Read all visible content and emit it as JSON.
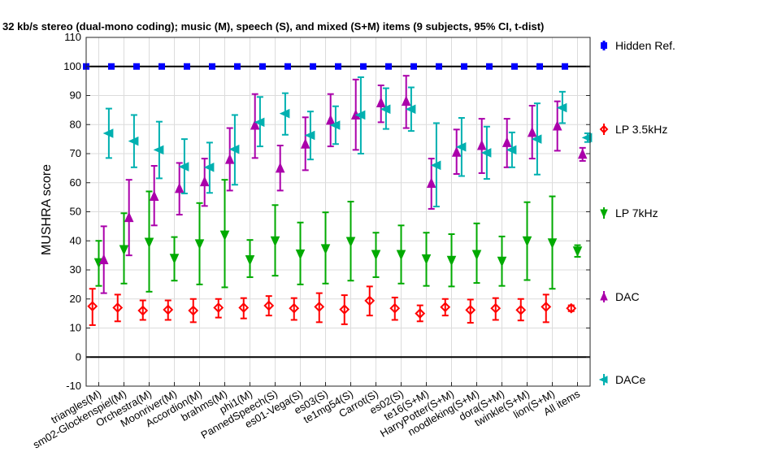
{
  "chart_data": {
    "type": "errorbar",
    "title": "32 kb/s stereo (dual-mono coding); music (M), speech (S), and mixed (S+M) items (9 subjects, 95% CI, t-dist)",
    "ylabel": "MUSHRA score",
    "xlabel": "",
    "ylim": [
      -10,
      110
    ],
    "yticks": [
      -10,
      0,
      10,
      20,
      30,
      40,
      50,
      60,
      70,
      80,
      90,
      100,
      110
    ],
    "grid": true,
    "categories": [
      "triangles(M)",
      "sm02-Glockenspiel(M)",
      "Orchestra(M)",
      "Moonriver(M)",
      "Accordion(M)",
      "brahms(M)",
      "phi1(M)",
      "PannedSpeech(S)",
      "es01-Vega(S)",
      "es03(S)",
      "te1mg54(S)",
      "Carrot(S)",
      "es02(S)",
      "te16(S+M)",
      "HarryPotter(S+M)",
      "noodleking(S+M)",
      "dora(S+M)",
      "twinkle(S+M)",
      "lion(S+M)",
      "All items"
    ],
    "series": [
      {
        "name": "Hidden Ref.",
        "color": "#0000ff",
        "marker": "square",
        "mean": [
          100,
          100,
          100,
          100,
          100,
          100,
          100,
          100,
          100,
          100,
          100,
          100,
          100,
          100,
          100,
          100,
          100,
          100,
          100,
          100
        ],
        "low": [
          100,
          100,
          100,
          100,
          100,
          100,
          100,
          100,
          100,
          100,
          100,
          100,
          100,
          100,
          100,
          100,
          100,
          100,
          100,
          100
        ],
        "high": [
          100,
          100,
          100,
          100,
          100,
          100,
          100,
          100,
          100,
          100,
          100,
          100,
          100,
          100,
          100,
          100,
          100,
          100,
          100,
          100
        ]
      },
      {
        "name": "LP 3.5kHz",
        "color": "#ff0000",
        "marker": "diamond",
        "mean": [
          17.5,
          17,
          16,
          16.3,
          16,
          17,
          17,
          17.7,
          16.8,
          17.3,
          16.4,
          19.4,
          16.8,
          15,
          17.2,
          16.2,
          16.8,
          16.2,
          17.3,
          16.8
        ],
        "low": [
          11,
          12.3,
          12.8,
          12.8,
          12,
          13.6,
          13.3,
          14.3,
          12.8,
          12,
          11.3,
          14.3,
          12.8,
          12.3,
          14.3,
          11.8,
          12.8,
          12.6,
          12,
          15.8
        ],
        "high": [
          23.5,
          21.5,
          19.5,
          19.5,
          20,
          20,
          20.3,
          21,
          20.3,
          22,
          21.3,
          24.3,
          20.5,
          17.8,
          20,
          19.8,
          20.3,
          20,
          21.5,
          17.8
        ]
      },
      {
        "name": "LP 7kHz",
        "color": "#00aa00",
        "marker": "triangle-down",
        "mean": [
          32.5,
          37,
          39.5,
          34,
          39,
          42,
          33.5,
          40,
          35.5,
          37.3,
          39.8,
          35.3,
          35.3,
          33.8,
          33.3,
          35.3,
          33,
          40,
          39.3,
          36.5
        ],
        "low": [
          24.5,
          25.3,
          22.5,
          26.3,
          25,
          24,
          27.5,
          28,
          25,
          25.3,
          26.3,
          27.5,
          25.3,
          24.5,
          24.3,
          25.5,
          24.5,
          26.5,
          23.5,
          34.5
        ],
        "high": [
          40,
          49.5,
          57,
          41.3,
          53,
          61,
          40.3,
          52.3,
          46.3,
          49.8,
          53.5,
          42.8,
          45.3,
          42.8,
          42.3,
          46,
          41.5,
          53.3,
          55.3,
          38.5
        ]
      },
      {
        "name": "DAC",
        "color": "#aa00aa",
        "marker": "triangle-up",
        "mean": [
          33.5,
          48,
          55.3,
          58,
          60.3,
          68,
          79.8,
          65,
          73.3,
          81.5,
          83.3,
          87.5,
          88,
          59.8,
          70.5,
          72.8,
          73.8,
          77.3,
          79.5,
          69.8
        ],
        "low": [
          22,
          35,
          45.3,
          49,
          52,
          57.3,
          68.5,
          57.3,
          64.3,
          72.5,
          71.3,
          80.8,
          78.8,
          51,
          63,
          63.3,
          65.3,
          68.3,
          71,
          67.5
        ],
        "high": [
          45,
          61,
          65.8,
          66.8,
          68.3,
          78.8,
          90.5,
          72.8,
          82.5,
          90.5,
          95.5,
          93.5,
          96.8,
          68.3,
          78.3,
          82,
          82,
          86.5,
          88,
          72
        ]
      },
      {
        "name": "DACe",
        "color": "#00b0b0",
        "marker": "triangle-left",
        "mean": [
          77,
          74.3,
          71.3,
          65.5,
          65.3,
          71.5,
          80.8,
          83.8,
          76.3,
          79.8,
          83.3,
          85.3,
          85.3,
          66,
          72.3,
          70.3,
          71.3,
          75,
          85.8,
          75.5
        ],
        "low": [
          68.5,
          65.3,
          61.5,
          56.3,
          56.5,
          59.3,
          72.5,
          76.5,
          68,
          73.3,
          70,
          78.5,
          77.8,
          51.8,
          62.3,
          61.3,
          65.3,
          62.8,
          80.5,
          74
        ],
        "high": [
          85.5,
          83.3,
          81,
          75,
          73.8,
          83.3,
          89.5,
          90.8,
          84.5,
          86.3,
          96.3,
          92.5,
          92.8,
          80.5,
          82.3,
          79.3,
          77.3,
          87.3,
          91.3,
          77
        ]
      }
    ],
    "legend_placement": "right"
  }
}
